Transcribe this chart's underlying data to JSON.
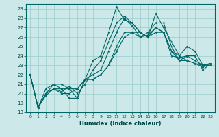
{
  "title": "",
  "xlabel": "Humidex (Indice chaleur)",
  "bg_color": "#cce8e8",
  "grid_color": "#99cccc",
  "line_color": "#006666",
  "marker_color": "#006666",
  "ylim": [
    18,
    29.5
  ],
  "xlim": [
    -0.5,
    23.5
  ],
  "yticks": [
    18,
    19,
    20,
    21,
    22,
    23,
    24,
    25,
    26,
    27,
    28,
    29
  ],
  "xticks": [
    0,
    1,
    2,
    3,
    4,
    5,
    6,
    7,
    8,
    9,
    10,
    11,
    12,
    13,
    14,
    15,
    16,
    17,
    18,
    19,
    20,
    21,
    22,
    23
  ],
  "series": [
    [
      22.0,
      18.5,
      20.0,
      20.5,
      20.5,
      20.5,
      19.5,
      21.5,
      23.5,
      24.0,
      26.5,
      29.2,
      27.8,
      27.5,
      26.5,
      26.0,
      28.5,
      27.0,
      25.5,
      24.0,
      25.0,
      24.5,
      23.0,
      23.0
    ],
    [
      22.0,
      18.5,
      19.8,
      20.5,
      20.2,
      20.8,
      20.0,
      21.0,
      22.5,
      23.5,
      25.5,
      27.5,
      28.2,
      27.5,
      26.5,
      26.0,
      26.5,
      26.5,
      24.5,
      23.5,
      24.0,
      24.0,
      22.5,
      23.2
    ],
    [
      22.0,
      18.5,
      20.0,
      21.0,
      20.5,
      19.5,
      19.5,
      21.5,
      22.0,
      22.5,
      24.5,
      26.5,
      28.0,
      27.2,
      26.0,
      26.5,
      27.5,
      27.5,
      25.0,
      23.5,
      23.5,
      23.2,
      22.8,
      23.2
    ],
    [
      22.0,
      18.5,
      20.0,
      20.5,
      20.0,
      20.0,
      20.5,
      21.5,
      21.5,
      22.0,
      23.0,
      24.5,
      26.0,
      26.5,
      26.5,
      26.0,
      27.0,
      26.5,
      24.0,
      23.8,
      24.0,
      23.5,
      23.0,
      23.2
    ],
    [
      22.0,
      18.5,
      20.5,
      21.0,
      21.0,
      20.5,
      20.5,
      21.5,
      21.5,
      22.0,
      23.0,
      25.0,
      26.5,
      26.5,
      26.0,
      26.2,
      27.0,
      26.5,
      24.5,
      24.0,
      23.5,
      23.2,
      23.0,
      23.2
    ]
  ]
}
